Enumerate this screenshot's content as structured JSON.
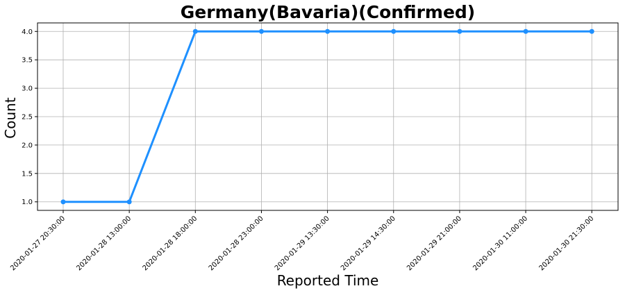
{
  "chart_data": {
    "type": "line",
    "title": "Germany(Bavaria)(Confirmed)",
    "xlabel": "Reported Time",
    "ylabel": "Count",
    "categories": [
      "2020-01-27 20:30:00",
      "2020-01-28 13:00:00",
      "2020-01-28 18:00:00",
      "2020-01-28 23:00:00",
      "2020-01-29 13:30:00",
      "2020-01-29 14:30:00",
      "2020-01-29 21:00:00",
      "2020-01-30 11:00:00",
      "2020-01-30 21:30:00"
    ],
    "values": [
      1,
      1,
      4,
      4,
      4,
      4,
      4,
      4,
      4
    ],
    "ylim": [
      0.85,
      4.15
    ],
    "yticks": [
      "1.0",
      "1.5",
      "2.0",
      "2.5",
      "3.0",
      "3.5",
      "4.0"
    ],
    "grid": true,
    "line_color": "#1e90ff",
    "grid_color": "#b0b0b0"
  }
}
